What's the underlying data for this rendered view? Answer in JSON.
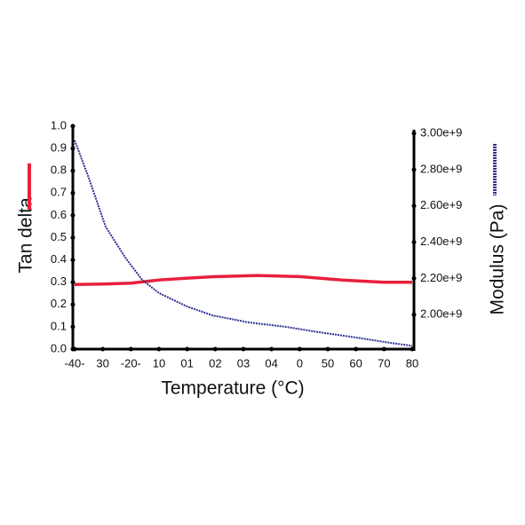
{
  "chart_data": {
    "type": "line",
    "x_label": "Temperature (°C)",
    "xlim": [
      -40,
      80
    ],
    "xticks": [
      {
        "value": -40,
        "label": "-40-"
      },
      {
        "value": -30,
        "label": "30"
      },
      {
        "value": -20,
        "label": "-20-"
      },
      {
        "value": -10,
        "label": "10"
      },
      {
        "value": 0,
        "label": "01"
      },
      {
        "value": 10,
        "label": "02"
      },
      {
        "value": 20,
        "label": "03"
      },
      {
        "value": 30,
        "label": "04"
      },
      {
        "value": 40,
        "label": "0"
      },
      50,
      60,
      70,
      80
    ],
    "ylim": [
      0,
      1
    ],
    "yticks": [
      {
        "value": 0,
        "label": "0.0"
      },
      0.1,
      0.2,
      0.3,
      0.4,
      0.5,
      0.6,
      0.7,
      0.8,
      0.9,
      {
        "value": 1,
        "label": "1.0"
      }
    ],
    "y2lim": [
      1810000000,
      3040000000
    ],
    "y2ticks": [
      {
        "value": 2000000000,
        "label": "2.00e+9"
      },
      {
        "value": 2200000000,
        "label": "2.20e+9"
      },
      {
        "value": 2400000000,
        "label": "2.40e+9"
      },
      {
        "value": 2600000000,
        "label": "2.60e+9"
      },
      {
        "value": 2800000000,
        "label": "2.80e+9"
      },
      {
        "value": 3000000000,
        "label": "3.00e+9"
      }
    ],
    "series": [
      {
        "name": "Tan delta",
        "color": "#e8203c",
        "x": [
          -40,
          -30,
          -20,
          -10,
          0,
          10,
          25,
          40,
          55,
          70,
          80
        ],
        "values": [
          0.29,
          0.292,
          0.296,
          0.31,
          0.318,
          0.325,
          0.33,
          0.325,
          0.31,
          0.3,
          0.3
        ]
      },
      {
        "name": "Modulus (Pa)",
        "color": "#2e3192",
        "axis": "y2",
        "x": [
          -40,
          -35,
          -29,
          -22,
          -16,
          -10,
          0,
          9,
          22,
          35,
          47,
          60,
          72,
          80
        ],
        "values": [
          2962000000,
          2756000000,
          2486000000,
          2315000000,
          2192000000,
          2119000000,
          2045000000,
          1996000000,
          1957000000,
          1933000000,
          1903000000,
          1874000000,
          1845000000,
          1828000000
        ]
      }
    ]
  }
}
